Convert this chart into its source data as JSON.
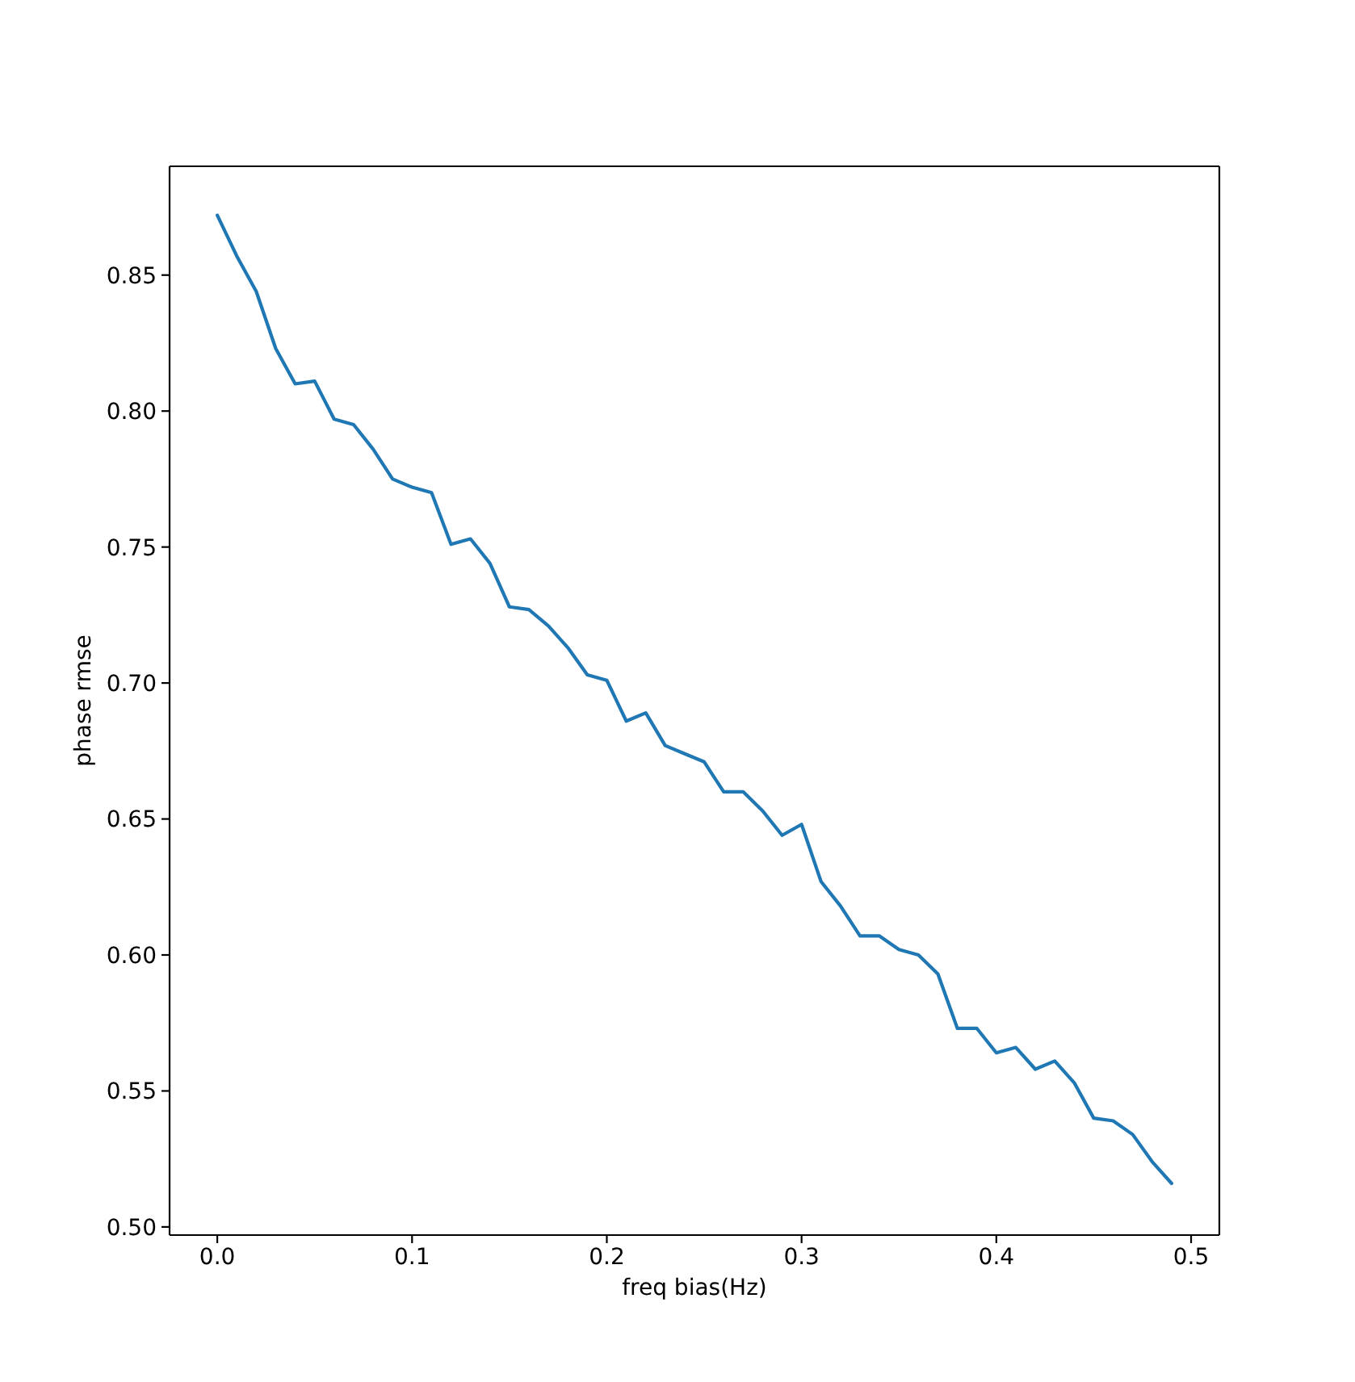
{
  "chart_data": {
    "type": "line",
    "xlabel": "freq bias(Hz)",
    "ylabel": "phase rmse",
    "x": [
      0,
      0.01,
      0.02,
      0.03,
      0.04,
      0.05,
      0.06,
      0.07,
      0.08,
      0.09,
      0.1,
      0.11,
      0.12,
      0.13,
      0.14,
      0.15,
      0.16,
      0.17,
      0.18,
      0.19,
      0.2,
      0.21,
      0.22,
      0.23,
      0.24,
      0.25,
      0.26,
      0.27,
      0.28,
      0.29,
      0.3,
      0.31,
      0.32,
      0.33,
      0.34,
      0.35,
      0.36,
      0.37,
      0.38,
      0.39,
      0.4,
      0.41,
      0.42,
      0.43,
      0.44,
      0.45,
      0.46,
      0.47,
      0.48,
      0.49
    ],
    "values": [
      0.872,
      0.857,
      0.844,
      0.823,
      0.81,
      0.811,
      0.797,
      0.795,
      0.786,
      0.775,
      0.772,
      0.77,
      0.751,
      0.753,
      0.744,
      0.728,
      0.727,
      0.721,
      0.713,
      0.703,
      0.701,
      0.686,
      0.689,
      0.677,
      0.674,
      0.671,
      0.66,
      0.66,
      0.653,
      0.644,
      0.648,
      0.627,
      0.618,
      0.607,
      0.607,
      0.602,
      0.6,
      0.593,
      0.573,
      0.573,
      0.564,
      0.566,
      0.558,
      0.561,
      0.553,
      0.54,
      0.539,
      0.534,
      0.524,
      0.516
    ],
    "color": "#1f77b4",
    "xlim": [
      -0.0245,
      0.5145
    ],
    "xticks": [
      {
        "value": 0,
        "label": "0.0"
      },
      0.1,
      0.2,
      0.3,
      0.4,
      0.5
    ],
    "ylim": [
      0.497,
      0.89
    ],
    "yticks": [
      {
        "value": 0.5,
        "label": "0.50"
      },
      0.55,
      {
        "value": 0.6,
        "label": "0.60"
      },
      0.65,
      {
        "value": 0.7,
        "label": "0.70"
      },
      0.75,
      {
        "value": 0.8,
        "label": "0.80"
      },
      0.85
    ]
  }
}
